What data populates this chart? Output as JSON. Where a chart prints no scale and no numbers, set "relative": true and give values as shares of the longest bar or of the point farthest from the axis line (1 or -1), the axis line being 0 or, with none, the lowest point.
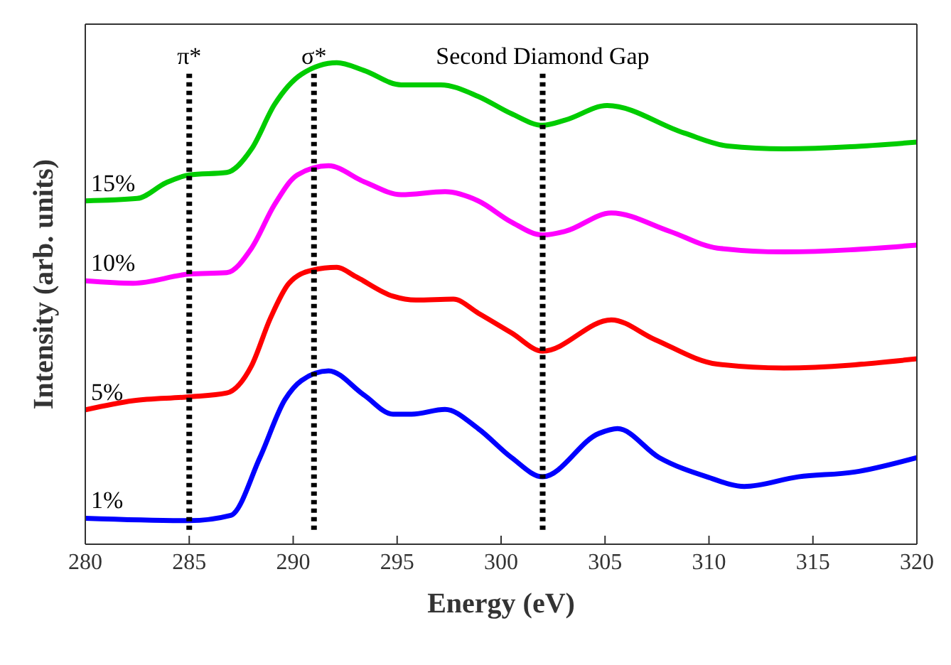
{
  "chart_data": {
    "type": "line",
    "xlabel": "Energy (eV)",
    "ylabel": "Intensity (arb. units)",
    "relative": true,
    "xlim": [
      280,
      320
    ],
    "xticks": [
      280,
      285,
      290,
      295,
      300,
      305,
      310,
      315,
      320
    ],
    "marker": "none",
    "line_style": "solid",
    "series": [
      {
        "name": "15%",
        "color": "#00cc00",
        "x": [
          280,
          282.5,
          283.9,
          285,
          286.8,
          288,
          289.1,
          290.4,
          292.1,
          293.4,
          295.2,
          297.1,
          298.9,
          300.5,
          302,
          303.1,
          305.1,
          308.8,
          310.9,
          313.6,
          320
        ],
        "values": [
          0.713,
          0.718,
          0.751,
          0.767,
          0.772,
          0.821,
          0.913,
          0.976,
          1,
          0.984,
          0.954,
          0.954,
          0.93,
          0.894,
          0.87,
          0.881,
          0.911,
          0.854,
          0.827,
          0.821,
          0.835
        ]
      },
      {
        "name": "10%",
        "color": "#ff00ff",
        "x": [
          280,
          282.3,
          285,
          286.8,
          288,
          289.1,
          290.2,
          291.7,
          293.4,
          295.2,
          297.3,
          298.9,
          300.5,
          302,
          303.1,
          305.3,
          308.1,
          310.4,
          313.6,
          320
        ],
        "values": [
          0.547,
          0.542,
          0.561,
          0.564,
          0.615,
          0.705,
          0.767,
          0.786,
          0.753,
          0.726,
          0.732,
          0.713,
          0.669,
          0.642,
          0.65,
          0.688,
          0.65,
          0.615,
          0.607,
          0.621
        ]
      },
      {
        "name": "5%",
        "color": "#ff0000",
        "x": [
          280,
          282.3,
          285,
          286.8,
          288,
          288.9,
          289.8,
          290.9,
          292.1,
          293,
          294.8,
          295.9,
          297.7,
          298.9,
          300.5,
          302,
          305.3,
          307.4,
          310.4,
          313.6,
          320
        ],
        "values": [
          0.279,
          0.298,
          0.306,
          0.314,
          0.371,
          0.469,
          0.542,
          0.569,
          0.575,
          0.556,
          0.515,
          0.507,
          0.509,
          0.48,
          0.439,
          0.401,
          0.466,
          0.425,
          0.374,
          0.366,
          0.385
        ]
      },
      {
        "name": "1%",
        "color": "#0000ff",
        "x": [
          280,
          285,
          287,
          288.4,
          289.6,
          290.4,
          291.7,
          293.4,
          294.8,
          295.7,
          297.3,
          298.9,
          300.5,
          302,
          304.7,
          305.6,
          307.6,
          309.9,
          311.7,
          314.3,
          317,
          320
        ],
        "values": [
          0.054,
          0.049,
          0.06,
          0.18,
          0.3,
          0.34,
          0.36,
          0.31,
          0.27,
          0.27,
          0.28,
          0.24,
          0.18,
          0.14,
          0.23,
          0.24,
          0.18,
          0.14,
          0.12,
          0.14,
          0.15,
          0.18
        ]
      }
    ],
    "ref_lines": [
      {
        "axis": "x",
        "value": 285,
        "label": "π*",
        "color": "#000000",
        "line_style": "dotted"
      },
      {
        "axis": "x",
        "value": 291,
        "label": "σ*",
        "color": "#000000",
        "line_style": "dotted"
      },
      {
        "axis": "x",
        "value": 302,
        "label": "Second Diamond Gap",
        "color": "#000000",
        "line_style": "dotted"
      }
    ]
  }
}
